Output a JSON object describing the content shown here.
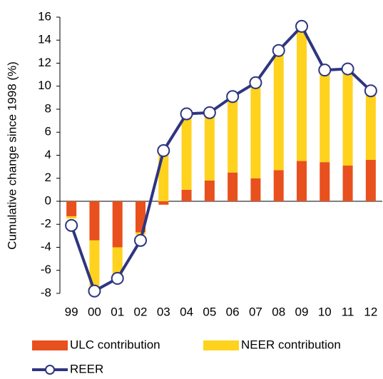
{
  "chart_data": {
    "type": "bar",
    "stacked": true,
    "y_label": "Cumulative change since 1998 (%)",
    "categories": [
      "99",
      "00",
      "01",
      "02",
      "03",
      "04",
      "05",
      "06",
      "07",
      "08",
      "09",
      "10",
      "11",
      "12"
    ],
    "series": [
      {
        "name": "ULC contribution",
        "type": "bar",
        "color": "#e8501e",
        "values": [
          -1.3,
          -3.4,
          -4.0,
          -2.7,
          -0.3,
          1.0,
          1.8,
          2.5,
          2.0,
          2.7,
          3.5,
          3.4,
          3.1,
          3.6
        ]
      },
      {
        "name": "NEER contribution",
        "type": "bar",
        "color": "#ffd21e",
        "values": [
          -0.2,
          -4.3,
          -2.7,
          -0.2,
          4.4,
          6.6,
          5.9,
          6.6,
          8.3,
          10.4,
          11.7,
          8.0,
          8.4,
          6.0
        ]
      },
      {
        "name": "REER",
        "type": "line",
        "color": "#2e3580",
        "values": [
          -2.1,
          -7.8,
          -6.7,
          -3.4,
          4.4,
          7.6,
          7.7,
          9.1,
          10.3,
          13.1,
          15.2,
          11.4,
          11.5,
          9.6
        ]
      }
    ],
    "ylim": [
      -8,
      16
    ],
    "yticks": [
      -8,
      -6,
      -4,
      -2,
      0,
      2,
      4,
      6,
      8,
      10,
      12,
      14,
      16
    ]
  }
}
